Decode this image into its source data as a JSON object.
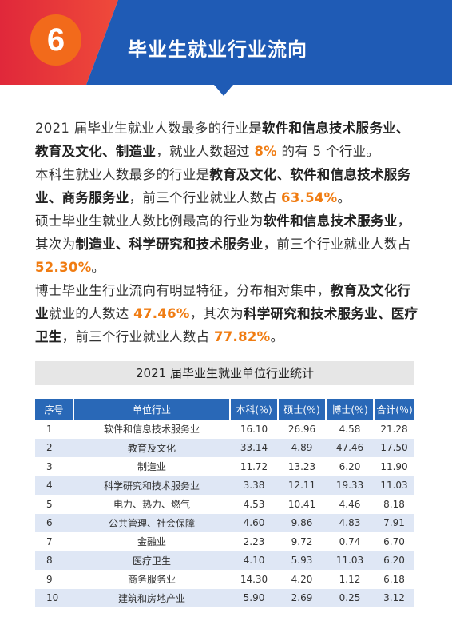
{
  "header": {
    "number": "6",
    "title": "毕业生就业行业流向",
    "colors": {
      "red": "#e0283a",
      "blue": "#1f5bb5",
      "orange": "#f26a1b"
    }
  },
  "paragraphs": [
    [
      {
        "t": "2021 届毕业生就业人数最多的行业是",
        "s": "n"
      },
      {
        "t": "软件和信息技术服务业、教育及文化、制造业",
        "s": "b"
      },
      {
        "t": "，就业人数超过 ",
        "s": "n"
      },
      {
        "t": "8%",
        "s": "h"
      },
      {
        "t": " 的有 5 个行业。",
        "s": "n"
      }
    ],
    [
      {
        "t": "本科生就业人数最多的行业是",
        "s": "n"
      },
      {
        "t": "教育及文化、软件和信息技术服务业、商务服务业",
        "s": "b"
      },
      {
        "t": "，前三个行业就业人数占 ",
        "s": "n"
      },
      {
        "t": "63.54%",
        "s": "h"
      },
      {
        "t": "。",
        "s": "n"
      }
    ],
    [
      {
        "t": "硕士毕业生就业人数比例最高的行业为",
        "s": "n"
      },
      {
        "t": "软件和信息技术服务业",
        "s": "b"
      },
      {
        "t": "，其次为",
        "s": "n"
      },
      {
        "t": "制造业、科学研究和技术服务业",
        "s": "b"
      },
      {
        "t": "，前三个行业就业人数占 ",
        "s": "n"
      },
      {
        "t": "52.30%",
        "s": "h"
      },
      {
        "t": "。",
        "s": "n"
      }
    ],
    [
      {
        "t": "博士毕业生行业流向有明显特征，分布相对集中，",
        "s": "n"
      },
      {
        "t": "教育及文化行业",
        "s": "b"
      },
      {
        "t": "就业的人数达 ",
        "s": "n"
      },
      {
        "t": "47.46%",
        "s": "h"
      },
      {
        "t": "，其次为",
        "s": "n"
      },
      {
        "t": "科学研究和技术服务业、医疗卫生",
        "s": "b"
      },
      {
        "t": "，前三个行业就业人数占 ",
        "s": "n"
      },
      {
        "t": "77.82%",
        "s": "h"
      },
      {
        "t": "。",
        "s": "n"
      }
    ]
  ],
  "table": {
    "caption": "2021 届毕业生就业单位行业统计",
    "headers": [
      "序号",
      "单位行业",
      "本科(％)",
      "硕士(％)",
      "博士(％)",
      "合计(％)"
    ],
    "rows": [
      [
        "1",
        "软件和信息技术服务业",
        "16.10",
        "26.96",
        "4.58",
        "21.28"
      ],
      [
        "2",
        "教育及文化",
        "33.14",
        "4.89",
        "47.46",
        "17.50"
      ],
      [
        "3",
        "制造业",
        "11.72",
        "13.23",
        "6.20",
        "11.90"
      ],
      [
        "4",
        "科学研究和技术服务业",
        "3.38",
        "12.11",
        "19.33",
        "11.03"
      ],
      [
        "5",
        "电力、热力、燃气",
        "4.53",
        "10.41",
        "4.46",
        "8.18"
      ],
      [
        "6",
        "公共管理、社会保障",
        "4.60",
        "9.86",
        "4.83",
        "7.91"
      ],
      [
        "7",
        "金融业",
        "2.23",
        "9.72",
        "0.74",
        "6.70"
      ],
      [
        "8",
        "医疗卫生",
        "4.10",
        "5.93",
        "11.03",
        "6.20"
      ],
      [
        "9",
        "商务服务业",
        "14.30",
        "4.20",
        "1.12",
        "6.18"
      ],
      [
        "10",
        "建筑和房地产业",
        "5.90",
        "2.69",
        "0.25",
        "3.12"
      ]
    ]
  }
}
